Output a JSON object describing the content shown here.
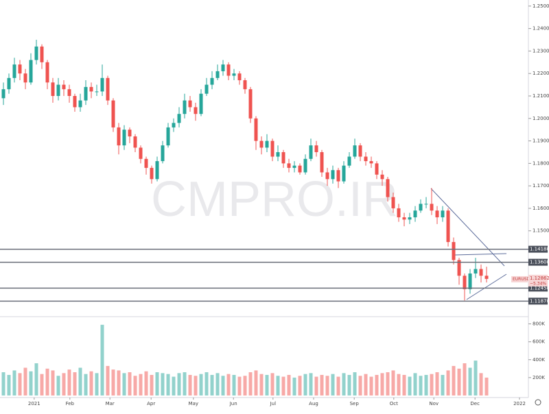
{
  "chart_data": {
    "type": "candlestick",
    "watermark": "CMPRO.IR",
    "symbol": "EURUSD",
    "last_price": "1.12862",
    "change": "−5.34%",
    "up_color": "#26a69a",
    "down_color": "#ef5350",
    "xlim": [
      -0.625,
      95.625
    ],
    "xticks": [
      {
        "value": 5.6,
        "label": "2021"
      },
      {
        "value": 12.1,
        "label": "Feb"
      },
      {
        "value": 19.4,
        "label": "Mar"
      },
      {
        "value": 26.9,
        "label": "Apr"
      },
      {
        "value": 34.6,
        "label": "May"
      },
      {
        "value": 41.9,
        "label": "Jun"
      },
      {
        "value": 49.1,
        "label": "Jul"
      },
      {
        "value": 56.5,
        "label": "Aug"
      },
      {
        "value": 63.9,
        "label": "Sep"
      },
      {
        "value": 71.1,
        "label": "Oct"
      },
      {
        "value": 78.4,
        "label": "Nov"
      },
      {
        "value": 85.9,
        "label": "Dec"
      },
      {
        "value": 94,
        "label": "2022"
      }
    ],
    "ylim": [
      1.1124,
      1.2527
    ],
    "yticks": [
      {
        "value": 1.25,
        "label": "1.25000"
      },
      {
        "value": 1.24,
        "label": "1.24000"
      },
      {
        "value": 1.23,
        "label": "1.23000"
      },
      {
        "value": 1.22,
        "label": "1.22000"
      },
      {
        "value": 1.21,
        "label": "1.21000"
      },
      {
        "value": 1.2,
        "label": "1.20000"
      },
      {
        "value": 1.19,
        "label": "1.19000"
      },
      {
        "value": 1.18,
        "label": "1.18000"
      },
      {
        "value": 1.17,
        "label": "1.17000"
      },
      {
        "value": 1.16,
        "label": "1.16000"
      },
      {
        "value": 1.15,
        "label": "1.15000"
      }
    ],
    "levels": [
      {
        "value": 1.1418,
        "label": "1.14180"
      },
      {
        "value": 1.136,
        "label": "1.13600"
      },
      {
        "value": 1.1245,
        "label": "1.12450"
      },
      {
        "value": 1.1187,
        "label": "1.11870"
      }
    ],
    "y2lim": [
      0,
      850000
    ],
    "y2ticks": [
      {
        "value": 200000,
        "label": "200K"
      },
      {
        "value": 400000,
        "label": "400K"
      },
      {
        "value": 600000,
        "label": "600K"
      },
      {
        "value": 800000,
        "label": "800K"
      }
    ],
    "open": [
      1.209,
      1.213,
      1.218,
      1.224,
      1.22,
      1.216,
      1.226,
      1.232,
      1.225,
      1.216,
      1.21,
      1.215,
      1.213,
      1.21,
      1.205,
      1.208,
      1.214,
      1.212,
      1.212,
      1.218,
      1.208,
      1.196,
      1.188,
      1.195,
      1.192,
      1.187,
      1.182,
      1.178,
      1.173,
      1.181,
      1.188,
      1.196,
      1.198,
      1.202,
      1.208,
      1.205,
      1.202,
      1.211,
      1.215,
      1.218,
      1.221,
      1.224,
      1.219,
      1.22,
      1.217,
      1.213,
      1.2,
      1.19,
      1.187,
      1.19,
      1.183,
      1.185,
      1.18,
      1.178,
      1.179,
      1.176,
      1.182,
      1.188,
      1.185,
      1.176,
      1.173,
      1.177,
      1.172,
      1.179,
      1.183,
      1.188,
      1.183,
      1.181,
      1.18,
      1.175,
      1.173,
      1.165,
      1.16,
      1.156,
      1.155,
      1.156,
      1.159,
      1.162,
      1.162,
      1.159,
      1.156,
      1.159,
      1.145,
      1.137,
      1.13,
      1.124,
      1.131,
      1.133,
      1.13
    ],
    "high": [
      1.216,
      1.22,
      1.227,
      1.226,
      1.222,
      1.229,
      1.235,
      1.233,
      1.226,
      1.218,
      1.218,
      1.217,
      1.215,
      1.211,
      1.211,
      1.217,
      1.216,
      1.215,
      1.224,
      1.219,
      1.209,
      1.198,
      1.197,
      1.196,
      1.193,
      1.188,
      1.183,
      1.179,
      1.183,
      1.19,
      1.198,
      1.2,
      1.205,
      1.211,
      1.21,
      1.207,
      1.213,
      1.218,
      1.221,
      1.224,
      1.226,
      1.225,
      1.222,
      1.221,
      1.218,
      1.214,
      1.201,
      1.192,
      1.193,
      1.191,
      1.188,
      1.186,
      1.182,
      1.181,
      1.18,
      1.184,
      1.191,
      1.19,
      1.186,
      1.178,
      1.179,
      1.178,
      1.181,
      1.185,
      1.191,
      1.189,
      1.185,
      1.183,
      1.181,
      1.177,
      1.174,
      1.167,
      1.162,
      1.158,
      1.158,
      1.161,
      1.164,
      1.165,
      1.169,
      1.161,
      1.161,
      1.16,
      1.147,
      1.138,
      1.131,
      1.133,
      1.138,
      1.135,
      1.134
    ],
    "low": [
      1.206,
      1.211,
      1.216,
      1.217,
      1.213,
      1.215,
      1.224,
      1.222,
      1.213,
      1.207,
      1.208,
      1.21,
      1.207,
      1.203,
      1.203,
      1.206,
      1.209,
      1.21,
      1.21,
      1.206,
      1.194,
      1.184,
      1.186,
      1.189,
      1.185,
      1.18,
      1.175,
      1.171,
      1.172,
      1.18,
      1.187,
      1.194,
      1.196,
      1.2,
      1.203,
      1.199,
      1.201,
      1.21,
      1.213,
      1.217,
      1.219,
      1.217,
      1.217,
      1.215,
      1.211,
      1.198,
      1.186,
      1.184,
      1.185,
      1.181,
      1.181,
      1.178,
      1.176,
      1.176,
      1.175,
      1.175,
      1.181,
      1.183,
      1.174,
      1.17,
      1.171,
      1.169,
      1.171,
      1.178,
      1.182,
      1.181,
      1.179,
      1.178,
      1.173,
      1.17,
      1.163,
      1.158,
      1.154,
      1.152,
      1.153,
      1.154,
      1.158,
      1.16,
      1.157,
      1.153,
      1.154,
      1.143,
      1.135,
      1.126,
      1.119,
      1.122,
      1.129,
      1.127,
      1.127
    ],
    "close": [
      1.213,
      1.218,
      1.224,
      1.22,
      1.216,
      1.226,
      1.232,
      1.225,
      1.216,
      1.21,
      1.215,
      1.213,
      1.21,
      1.205,
      1.208,
      1.214,
      1.212,
      1.212,
      1.218,
      1.208,
      1.196,
      1.188,
      1.195,
      1.192,
      1.187,
      1.182,
      1.178,
      1.173,
      1.181,
      1.188,
      1.196,
      1.198,
      1.202,
      1.208,
      1.205,
      1.202,
      1.211,
      1.215,
      1.218,
      1.221,
      1.224,
      1.219,
      1.22,
      1.217,
      1.213,
      1.2,
      1.19,
      1.187,
      1.19,
      1.183,
      1.185,
      1.18,
      1.178,
      1.179,
      1.176,
      1.182,
      1.188,
      1.185,
      1.176,
      1.173,
      1.177,
      1.172,
      1.179,
      1.183,
      1.188,
      1.183,
      1.181,
      1.18,
      1.175,
      1.173,
      1.165,
      1.16,
      1.156,
      1.155,
      1.156,
      1.159,
      1.162,
      1.162,
      1.159,
      1.156,
      1.159,
      1.145,
      1.137,
      1.13,
      1.124,
      1.131,
      1.133,
      1.13,
      1.1286
    ],
    "volume": [
      260000,
      230000,
      280000,
      250000,
      310000,
      270000,
      360000,
      240000,
      300000,
      280000,
      220000,
      250000,
      290000,
      260000,
      310000,
      240000,
      270000,
      250000,
      790000,
      330000,
      290000,
      280000,
      250000,
      260000,
      220000,
      240000,
      270000,
      230000,
      260000,
      250000,
      240000,
      210000,
      250000,
      260000,
      230000,
      220000,
      240000,
      260000,
      230000,
      250000,
      220000,
      240000,
      230000,
      210000,
      220000,
      260000,
      280000,
      240000,
      230000,
      250000,
      220000,
      210000,
      230000,
      200000,
      220000,
      240000,
      250000,
      210000,
      230000,
      220000,
      240000,
      210000,
      250000,
      230000,
      260000,
      220000,
      240000,
      210000,
      230000,
      250000,
      260000,
      280000,
      240000,
      230000,
      210000,
      250000,
      220000,
      230000,
      240000,
      260000,
      230000,
      280000,
      330000,
      300000,
      360000,
      310000,
      390000,
      250000,
      200000
    ]
  }
}
